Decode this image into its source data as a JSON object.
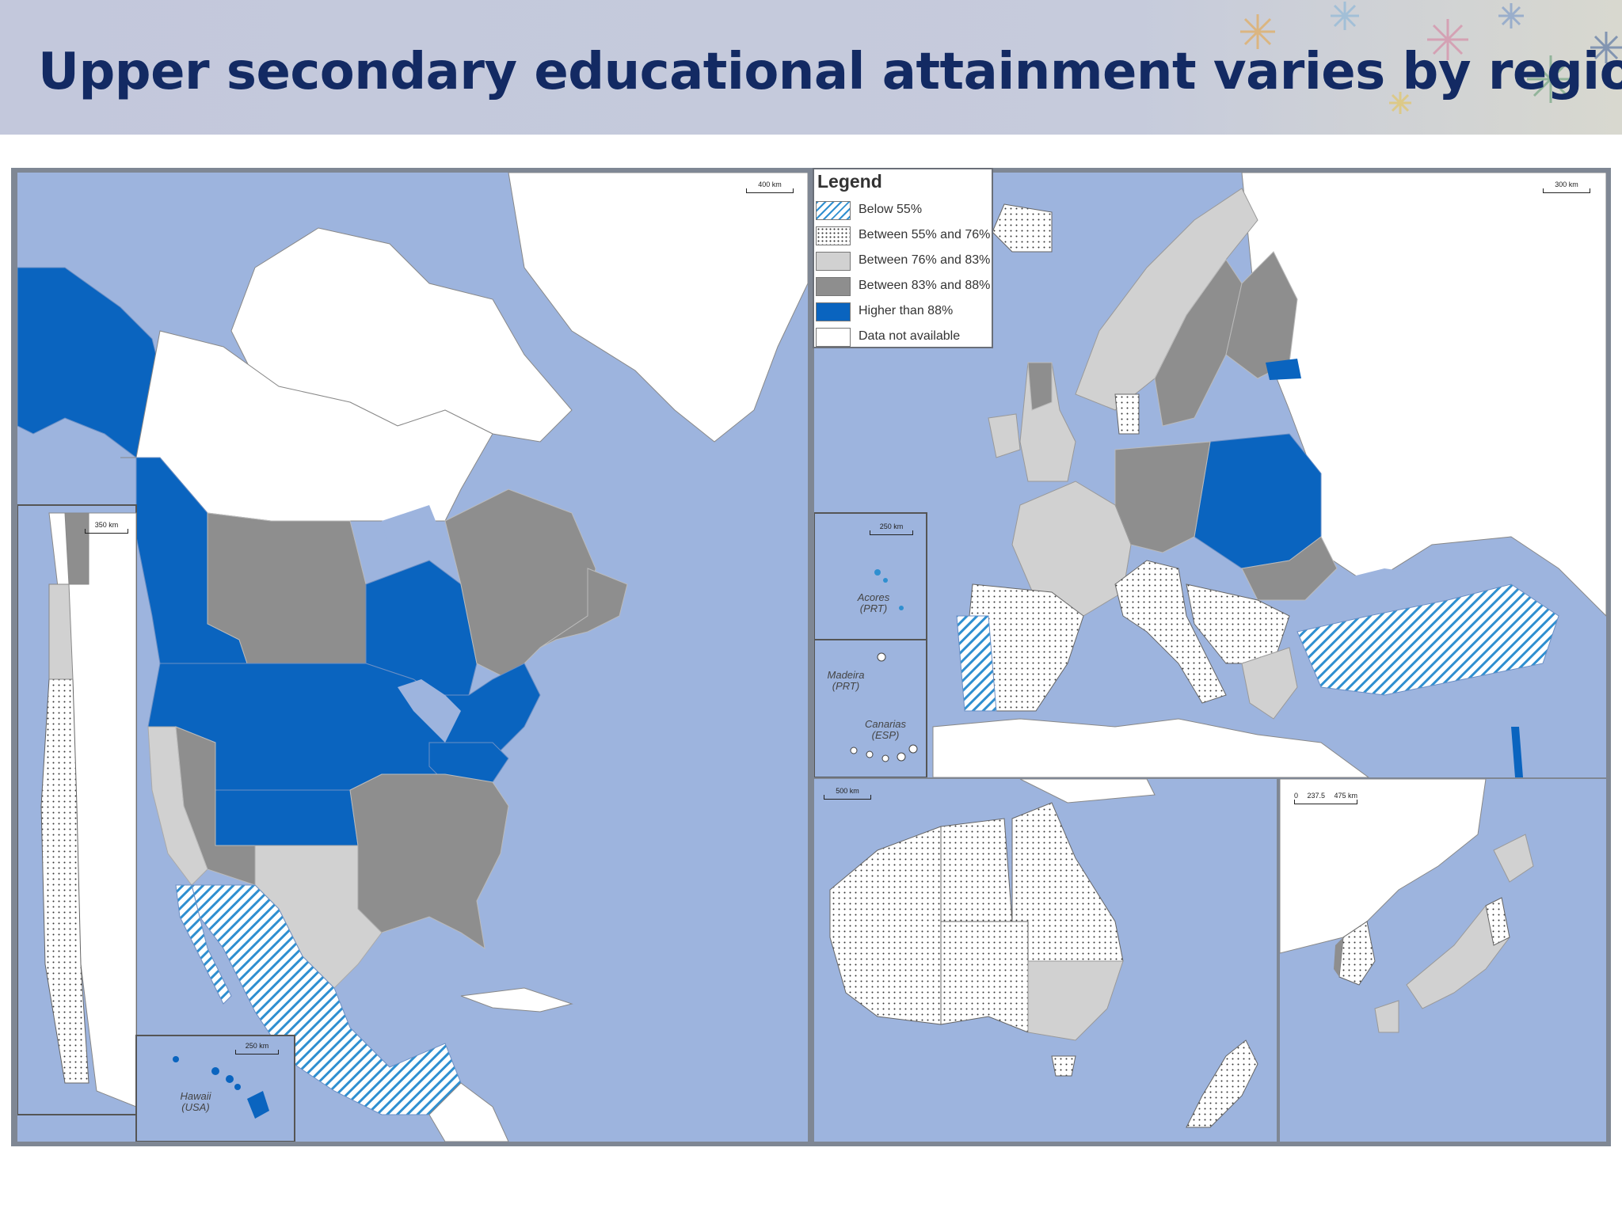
{
  "title": "Upper secondary educational attainment varies by region",
  "legend": {
    "title": "Legend",
    "items": [
      {
        "label": "Below 55%",
        "fill": "#2f8fd0",
        "pattern": "hatch"
      },
      {
        "label": "Between 55% and 76%",
        "fill": "#ffffff",
        "pattern": "dots"
      },
      {
        "label": "Between 76% and 83%",
        "fill": "#d1d1d1",
        "pattern": "solid"
      },
      {
        "label": "Between 83% and 88%",
        "fill": "#8e8e8e",
        "pattern": "solid"
      },
      {
        "label": "Higher than 88%",
        "fill": "#0a64bf",
        "pattern": "solid"
      },
      {
        "label": "Data not available",
        "fill": "#ffffff",
        "pattern": "solid"
      }
    ]
  },
  "scales": {
    "north_america": "400 km",
    "europe": "300 km",
    "chile": "350 km",
    "hawaii": "250 km",
    "atlantic": "250 km",
    "australia": "500 km",
    "east_asia": {
      "ticks": [
        "0",
        "237.5",
        "475 km"
      ]
    }
  },
  "insets": {
    "hawaii": "Hawaii\n(USA)",
    "azores": "Acores\n(PRT)",
    "madeira": "Madeira\n(PRT)",
    "canarias": "Canarias\n(ESP)"
  },
  "colors": {
    "water": "#9db4de",
    "no_data": "#ffffff",
    "light_gray": "#d1d1d1",
    "dark_gray": "#8e8e8e",
    "blue": "#0a64bf",
    "hatch": "#2f8fd0",
    "title": "#132a63"
  }
}
